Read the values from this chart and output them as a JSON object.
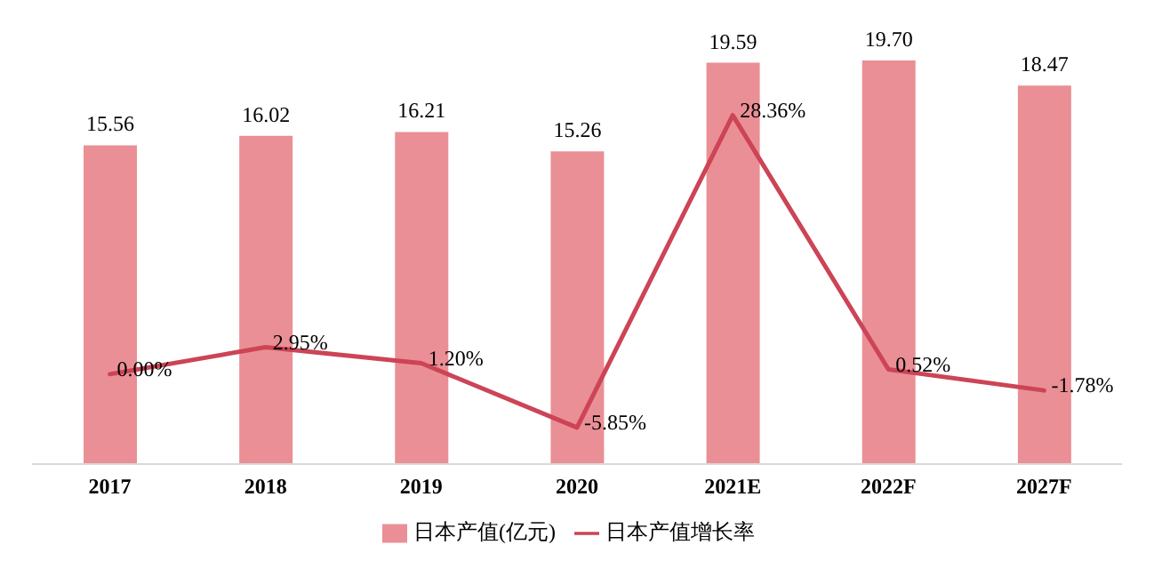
{
  "chart_data": {
    "type": "bar",
    "categories": [
      "2017",
      "2018",
      "2019",
      "2020",
      "2021E",
      "2022F",
      "2027F"
    ],
    "series": [
      {
        "name": "日本产值(亿元)",
        "color": "#ea8f95",
        "values": [
          15.56,
          16.02,
          16.21,
          15.26,
          19.59,
          19.7,
          18.47
        ],
        "value_labels": [
          "15.56",
          "16.02",
          "16.21",
          "15.26",
          "19.59",
          "19.70",
          "18.47"
        ]
      },
      {
        "name": "日本产值增长率",
        "type": "line",
        "axis": "y2",
        "color": "#cc4456",
        "values": [
          0.0,
          2.95,
          1.2,
          -5.85,
          28.36,
          0.52,
          -1.78
        ],
        "value_labels": [
          "0.00%",
          "2.95%",
          "1.20%",
          "-5.85%",
          "28.36%",
          "0.52%",
          "-1.78%"
        ]
      }
    ],
    "legend": "bottom",
    "marker": "none"
  }
}
